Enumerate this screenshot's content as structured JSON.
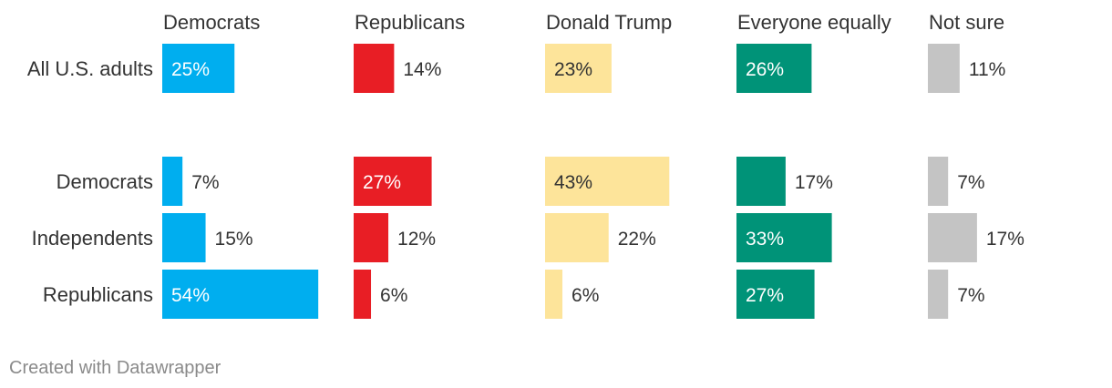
{
  "chart_data": {
    "type": "bar",
    "layout": "small-multiples",
    "title": "",
    "xlabel": "",
    "ylabel": "",
    "xlim": [
      0,
      100
    ],
    "categories": [
      "All U.S. adults",
      "Democrats",
      "Independents",
      "Republicans"
    ],
    "series": [
      {
        "name": "Democrats",
        "color": "#00aeef",
        "label_color": "#ffffff",
        "values": [
          25,
          7,
          15,
          54
        ],
        "labels": [
          "25%",
          "7%",
          "15%",
          "54%"
        ]
      },
      {
        "name": "Republicans",
        "color": "#e81e25",
        "label_color": "#ffffff",
        "values": [
          14,
          27,
          12,
          6
        ],
        "labels": [
          "14%",
          "27%",
          "12%",
          "6%"
        ]
      },
      {
        "name": "Donald Trump",
        "color": "#fde49a",
        "label_color": "#333333",
        "values": [
          23,
          43,
          22,
          6
        ],
        "labels": [
          "23%",
          "43%",
          "22%",
          "6%"
        ]
      },
      {
        "name": "Everyone equally",
        "color": "#009378",
        "label_color": "#ffffff",
        "values": [
          26,
          17,
          33,
          27
        ],
        "labels": [
          "26%",
          "17%",
          "33%",
          "27%"
        ]
      },
      {
        "name": "Not sure",
        "color": "#c4c4c4",
        "label_color": "#333333",
        "values": [
          11,
          7,
          17,
          7
        ],
        "labels": [
          "11%",
          "7%",
          "17%",
          "7%"
        ]
      }
    ]
  },
  "footer": {
    "credit": "Created with Datawrapper"
  }
}
